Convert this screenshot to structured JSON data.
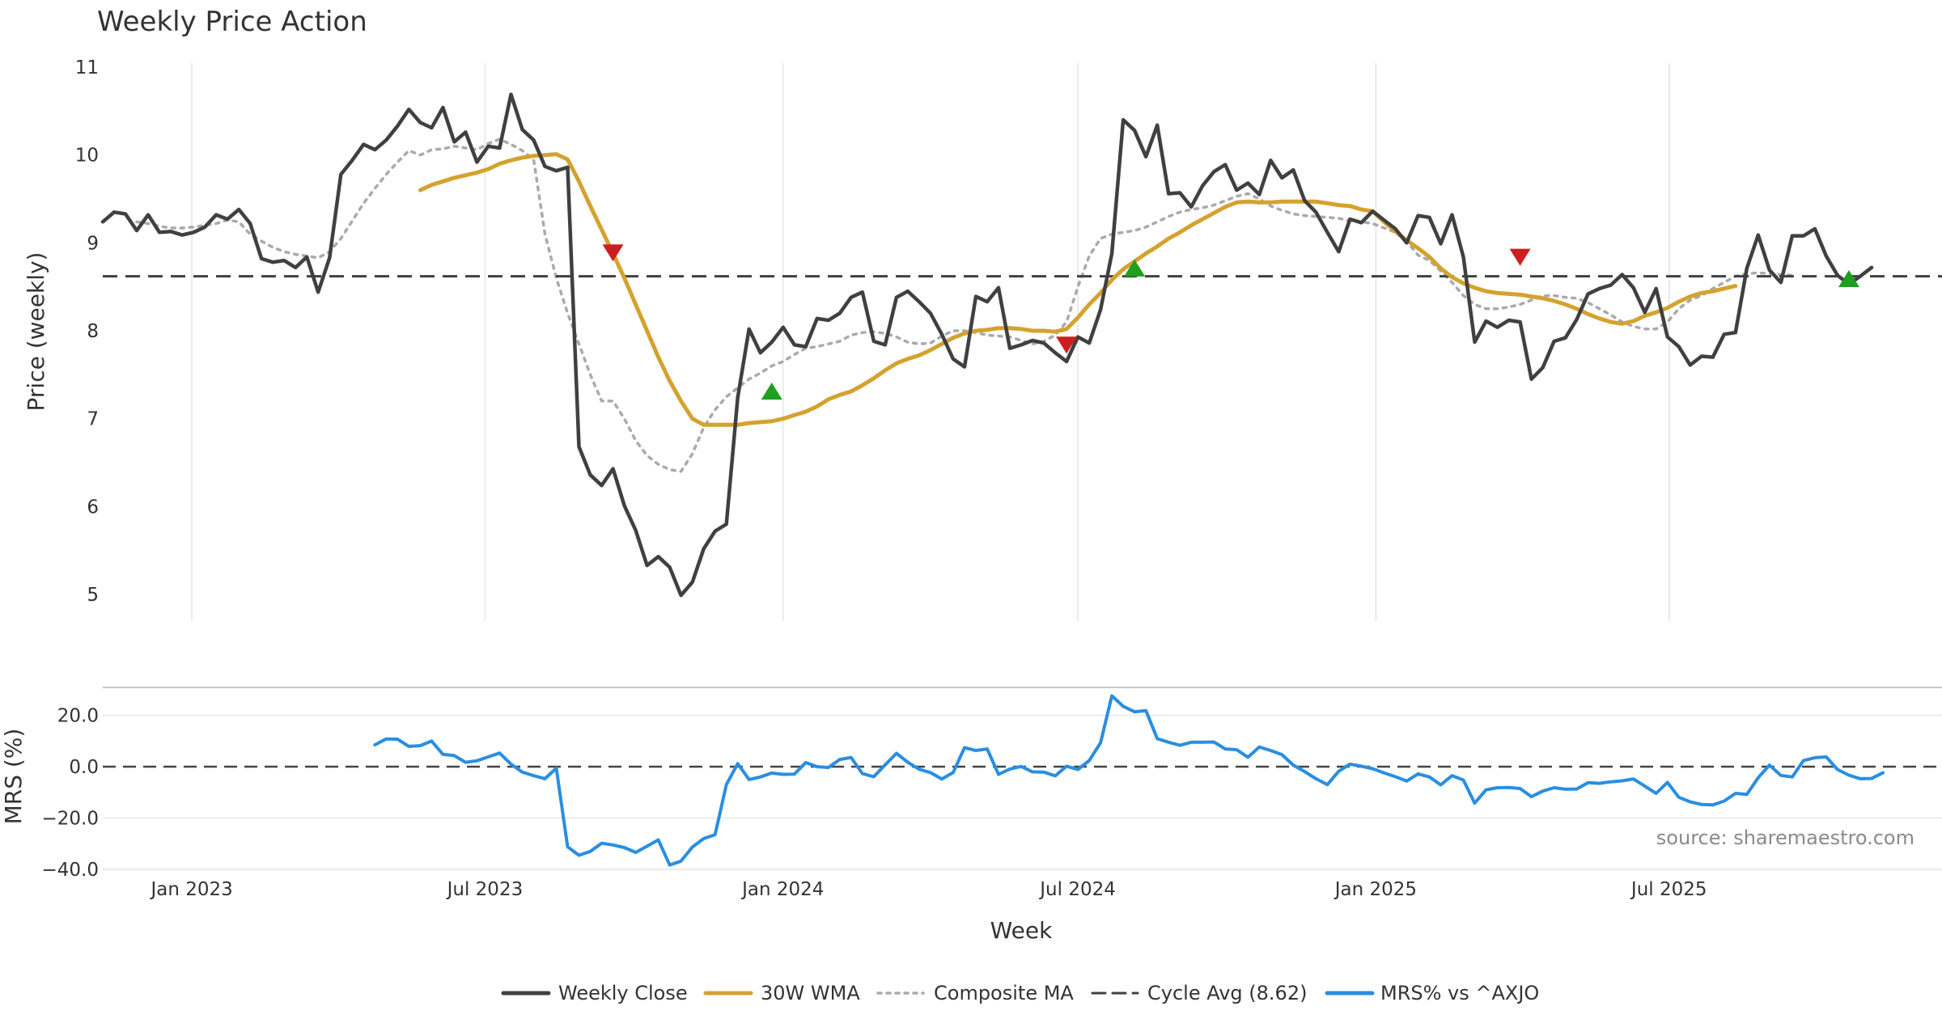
{
  "chart_data": {
    "type": "line",
    "title": "Weekly Price Action",
    "xlabel": "Week",
    "source": "source: sharemaestro.com",
    "x_ticks": [
      "Jan 2023",
      "Jul 2023",
      "Jan 2024",
      "Jul 2024",
      "Jan 2025",
      "Jul 2025"
    ],
    "price_panel": {
      "ylabel": "Price (weekly)",
      "ylim": [
        4.7,
        11.0
      ],
      "y_ticks": [
        5,
        6,
        7,
        8,
        9,
        10,
        11
      ],
      "grid": "vertical"
    },
    "mrs_panel": {
      "ylabel": "MRS (%)",
      "ylim": [
        -40,
        30
      ],
      "y_ticks": [
        "20.0",
        "0.0",
        "−20.0",
        "−40.0"
      ],
      "y_tick_values": [
        20,
        0,
        -20,
        -40
      ],
      "zero_line": 0
    },
    "cycle_avg": 8.62,
    "series": [
      {
        "name": "Weekly Close",
        "color": "#404040",
        "style": "solid",
        "start_date": "2022-11-07",
        "values": [
          9.24,
          9.35,
          9.33,
          9.14,
          9.32,
          9.12,
          9.13,
          9.09,
          9.12,
          9.18,
          9.32,
          9.27,
          9.38,
          9.22,
          8.82,
          8.78,
          8.8,
          8.72,
          8.84,
          8.44,
          8.83,
          9.78,
          9.94,
          10.12,
          10.06,
          10.17,
          10.33,
          10.52,
          10.37,
          10.31,
          10.54,
          10.15,
          10.26,
          9.92,
          10.1,
          10.08,
          10.69,
          10.29,
          10.17,
          9.87,
          9.82,
          9.86,
          6.68,
          6.36,
          6.24,
          6.43,
          6.01,
          5.73,
          5.33,
          5.43,
          5.31,
          4.99,
          5.14,
          5.52,
          5.72,
          5.8,
          7.24,
          8.02,
          7.75,
          7.87,
          8.04,
          7.84,
          7.82,
          8.14,
          8.12,
          8.2,
          8.38,
          8.44,
          7.88,
          7.84,
          8.38,
          8.45,
          8.33,
          8.2,
          7.96,
          7.68,
          7.59,
          8.39,
          8.33,
          8.49,
          7.8,
          7.84,
          7.89,
          7.86,
          7.75,
          7.65,
          7.93,
          7.86,
          8.24,
          8.88,
          10.4,
          10.28,
          9.98,
          10.34,
          9.56,
          9.57,
          9.41,
          9.65,
          9.81,
          9.89,
          9.6,
          9.68,
          9.55,
          9.94,
          9.74,
          9.83,
          9.48,
          9.35,
          9.12,
          8.9,
          9.27,
          9.23,
          9.36,
          9.26,
          9.16,
          9.0,
          9.31,
          9.29,
          8.99,
          9.32,
          8.84,
          7.87,
          8.11,
          8.04,
          8.12,
          8.1,
          7.45,
          7.58,
          7.88,
          7.92,
          8.13,
          8.42,
          8.48,
          8.52,
          8.64,
          8.49,
          8.21,
          8.48,
          7.93,
          7.82,
          7.61,
          7.71,
          7.7,
          7.96,
          7.98,
          8.71,
          9.09,
          8.69,
          8.55,
          9.08,
          9.08,
          9.16,
          8.85,
          8.63,
          8.53,
          8.62,
          8.72
        ]
      },
      {
        "name": "30W WMA",
        "color": "#d4a22f",
        "style": "solid",
        "start_date": "2023-05-22",
        "values": [
          9.6,
          9.66,
          9.7,
          9.74,
          9.77,
          9.8,
          9.84,
          9.9,
          9.94,
          9.97,
          9.99,
          10.0,
          10.01,
          9.95,
          9.7,
          9.42,
          9.15,
          8.88,
          8.6,
          8.3,
          8.0,
          7.7,
          7.43,
          7.2,
          7.0,
          6.93,
          6.93,
          6.93,
          6.93,
          6.95,
          6.96,
          6.97,
          7.0,
          7.04,
          7.08,
          7.14,
          7.22,
          7.27,
          7.31,
          7.38,
          7.46,
          7.55,
          7.63,
          7.68,
          7.72,
          7.78,
          7.85,
          7.92,
          7.97,
          8.0,
          8.01,
          8.03,
          8.03,
          8.02,
          8.0,
          8.0,
          7.99,
          8.02,
          8.15,
          8.3,
          8.43,
          8.58,
          8.7,
          8.79,
          8.88,
          8.96,
          9.05,
          9.12,
          9.2,
          9.27,
          9.34,
          9.41,
          9.46,
          9.47,
          9.46,
          9.46,
          9.47,
          9.47,
          9.47,
          9.47,
          9.45,
          9.43,
          9.42,
          9.38,
          9.36,
          9.24,
          9.13,
          9.03,
          8.94,
          8.84,
          8.71,
          8.61,
          8.54,
          8.49,
          8.45,
          8.43,
          8.42,
          8.41,
          8.39,
          8.37,
          8.34,
          8.3,
          8.25,
          8.19,
          8.14,
          8.1,
          8.08,
          8.11,
          8.17,
          8.21,
          8.26,
          8.33,
          8.39,
          8.43,
          8.45,
          8.48,
          8.51
        ]
      },
      {
        "name": "Composite MA",
        "color": "#aaaaaa",
        "style": "dotted",
        "start_date": "2022-11-28",
        "values": [
          9.24,
          9.22,
          9.19,
          9.17,
          9.17,
          9.18,
          9.2,
          9.22,
          9.26,
          9.24,
          9.1,
          9.02,
          8.95,
          8.9,
          8.87,
          8.85,
          8.83,
          8.9,
          9.05,
          9.25,
          9.45,
          9.62,
          9.78,
          9.92,
          10.05,
          10.0,
          10.06,
          10.07,
          10.1,
          10.08,
          10.06,
          10.13,
          10.18,
          10.12,
          10.05,
          9.95,
          9.1,
          8.6,
          8.2,
          7.85,
          7.5,
          7.2,
          7.2,
          7.0,
          6.75,
          6.58,
          6.48,
          6.42,
          6.4,
          6.6,
          6.9,
          7.1,
          7.25,
          7.35,
          7.45,
          7.52,
          7.6,
          7.65,
          7.73,
          7.8,
          7.82,
          7.85,
          7.88,
          7.95,
          7.98,
          7.99,
          7.97,
          7.93,
          7.87,
          7.85,
          7.86,
          7.94,
          8.0,
          8.0,
          7.98,
          7.95,
          7.94,
          7.93,
          7.89,
          7.85,
          7.88,
          7.95,
          8.1,
          8.5,
          8.85,
          9.05,
          9.1,
          9.12,
          9.14,
          9.18,
          9.24,
          9.3,
          9.35,
          9.38,
          9.4,
          9.43,
          9.48,
          9.53,
          9.56,
          9.5,
          9.42,
          9.37,
          9.33,
          9.31,
          9.3,
          9.29,
          9.28,
          9.25,
          9.24,
          9.22,
          9.17,
          9.12,
          9.02,
          8.86,
          8.8,
          8.68,
          8.55,
          8.4,
          8.3,
          8.25,
          8.25,
          8.27,
          8.3,
          8.35,
          8.4,
          8.4,
          8.38,
          8.37,
          8.32,
          8.25,
          8.18,
          8.1,
          8.05,
          8.02,
          8.02,
          8.1,
          8.25,
          8.35,
          8.4,
          8.48,
          8.55,
          8.62,
          8.65,
          8.66,
          8.65,
          8.64,
          8.63
        ]
      },
      {
        "name": "Cycle Avg (8.62)",
        "color": "#404040",
        "style": "dashed",
        "values": [
          8.62
        ]
      },
      {
        "name": "MRS% vs ^AXJO",
        "color": "#2a8ee0",
        "style": "solid",
        "panel": "mrs",
        "start_date": "2023-04-24",
        "values": [
          8.5,
          10.8,
          10.7,
          7.9,
          8.2,
          10.0,
          4.8,
          4.3,
          1.7,
          2.3,
          3.8,
          5.3,
          1.0,
          -2.1,
          -3.5,
          -4.7,
          -0.6,
          -31.2,
          -34.5,
          -33.0,
          -29.8,
          -30.5,
          -31.5,
          -33.4,
          -31.0,
          -28.5,
          -38.3,
          -36.8,
          -31.3,
          -28.0,
          -26.5,
          -7.0,
          1.2,
          -5.0,
          -4.0,
          -2.5,
          -3.0,
          -2.9,
          1.6,
          0.0,
          -0.3,
          2.8,
          3.6,
          -2.7,
          -3.9,
          0.7,
          5.2,
          1.7,
          -1.0,
          -2.3,
          -4.8,
          -2.3,
          7.4,
          6.3,
          6.9,
          -3.0,
          -0.9,
          0.1,
          -2.0,
          -2.1,
          -3.6,
          0.2,
          -1.1,
          2.4,
          9.3,
          27.6,
          23.5,
          21.4,
          21.8,
          10.9,
          9.5,
          8.3,
          9.5,
          9.5,
          9.6,
          6.9,
          6.6,
          3.7,
          7.7,
          6.3,
          4.7,
          0.6,
          -1.9,
          -4.7,
          -7.0,
          -1.8,
          1.0,
          0.2,
          -0.8,
          -2.4,
          -3.9,
          -5.6,
          -2.8,
          -4.0,
          -7.1,
          -3.5,
          -5.2,
          -14.2,
          -9.0,
          -8.2,
          -8.1,
          -8.5,
          -11.7,
          -9.5,
          -8.2,
          -8.8,
          -8.7,
          -6.2,
          -6.5,
          -5.9,
          -5.5,
          -4.8,
          -7.6,
          -10.4,
          -6.1,
          -11.9,
          -13.7,
          -14.7,
          -14.9,
          -13.4,
          -10.4,
          -10.8,
          -4.3,
          0.6,
          -3.4,
          -4.0,
          2.4,
          3.5,
          3.8,
          -1.1,
          -3.3,
          -4.7,
          -4.6,
          -2.4
        ]
      }
    ],
    "buy_signals": [
      {
        "date": "2023-12-25",
        "value": 7.3
      },
      {
        "date": "2024-08-05",
        "value": 8.7
      },
      {
        "date": "2025-10-20",
        "value": 8.58
      }
    ],
    "sell_signals": [
      {
        "date": "2023-09-18",
        "value": 8.9
      },
      {
        "date": "2024-06-24",
        "value": 7.85
      },
      {
        "date": "2025-03-31",
        "value": 8.85
      }
    ],
    "legend": {
      "position": "bottom",
      "entries": [
        "Weekly Close",
        "30W WMA",
        "Composite MA",
        "Cycle Avg (8.62)",
        "MRS% vs ^AXJO"
      ]
    }
  }
}
